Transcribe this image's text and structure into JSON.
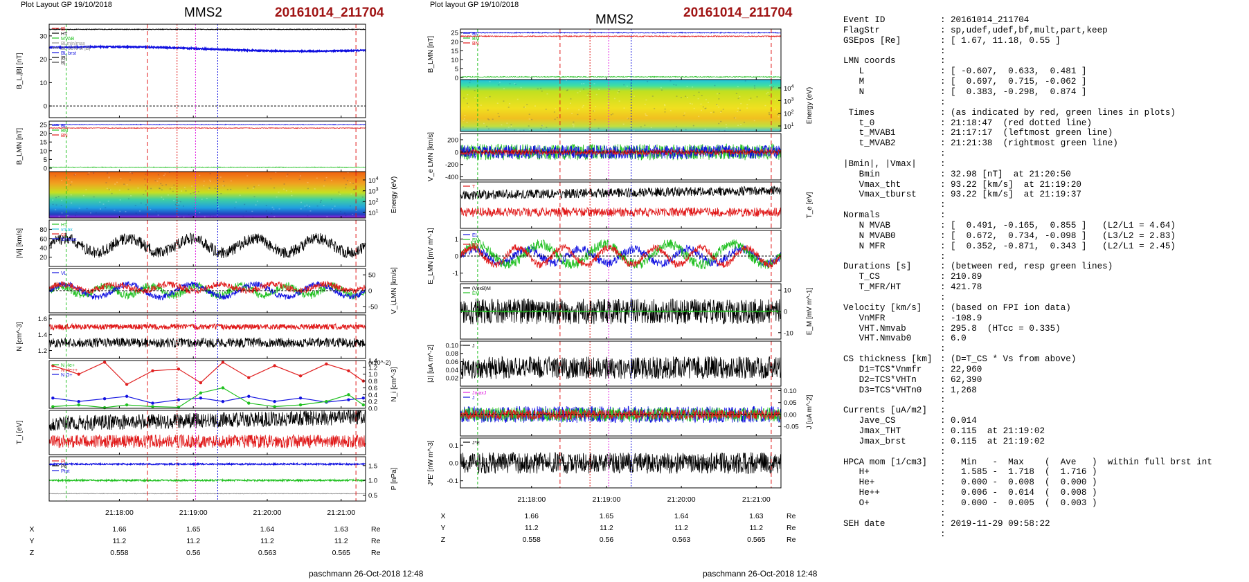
{
  "left_panel": {
    "plot_layout": "Plot Layout GP 19/10/2018",
    "spacecraft": "MMS2",
    "event": "20161014_211704",
    "footer": "paschmann 26-Oct-2018 12:48"
  },
  "middle_panel": {
    "plot_layout": "Plot layout GP 19/10/2018",
    "spacecraft": "MMS2",
    "event": "20161014_211704",
    "footer": "paschmann 26-Oct-2018 12:48"
  },
  "time_axis": {
    "ticks": [
      "21:18:00",
      "21:19:00",
      "21:20:00",
      "21:21:00"
    ],
    "tick_minutes": [
      18,
      19,
      20,
      21
    ],
    "range_minutes": [
      17.05,
      21.33
    ],
    "markers": {
      "mvab1": 17.28,
      "tcs_start": 18.38,
      "t0": 18.78,
      "tht": 19.03,
      "tburst": 19.33,
      "tcs_end": 21.2,
      "mvab2": 21.65
    }
  },
  "ephemeris": {
    "rows": [
      {
        "label": "X",
        "values": [
          "1.66",
          "1.65",
          "1.64",
          "1.63"
        ],
        "unit": "Re"
      },
      {
        "label": "Y",
        "values": [
          "11.2",
          "11.2",
          "11.2",
          "11.2"
        ],
        "unit": "Re"
      },
      {
        "label": "Z",
        "values": [
          "0.558",
          "0.56",
          "0.563",
          "0.565"
        ],
        "unit": "Re"
      }
    ]
  },
  "chart_data": [
    {
      "type": "line",
      "panel": "left-1",
      "ylabel": "B_L,|B| [nT]",
      "ylim": [
        -5,
        35
      ],
      "yticks": [
        "30",
        "20",
        "10",
        "0"
      ],
      "legend": [
        "Bl",
        "HT",
        "MVAB",
        "BLmin/max",
        "BL 50% of |B|",
        "BL brst",
        "|B|",
        "B|"
      ],
      "series": [
        {
          "name": "|B|",
          "approx_value": 33
        },
        {
          "name": "B_L",
          "start": 25.5,
          "end": 24.0
        }
      ]
    },
    {
      "type": "line",
      "panel": "left-2",
      "ylabel": "B_LMN [nT]",
      "ylim": [
        -2,
        27
      ],
      "yticks": [
        "25",
        "20",
        "15",
        "10",
        "5",
        "0"
      ],
      "legend": [
        "BL",
        "BM",
        "BN"
      ],
      "series": [
        {
          "name": "BL",
          "approx_value": 25
        },
        {
          "name": "BM",
          "approx_value": 23
        },
        {
          "name": "BN",
          "approx_value": 0.5
        }
      ]
    },
    {
      "type": "heatmap",
      "panel": "left-3",
      "ylabel": "Energy (eV)",
      "yticks": [
        "10^4",
        "10^3",
        "10^2",
        "10^1"
      ]
    },
    {
      "type": "line",
      "panel": "left-4",
      "ylabel": "|Vi| [km/s]",
      "ylim": [
        0,
        100
      ],
      "yticks": [
        "80",
        "60",
        "40",
        "20"
      ],
      "legend": [
        "HT",
        "vmax",
        "cs",
        "tbvmax"
      ],
      "series": [
        {
          "name": "|Vi|",
          "mean": 50,
          "amplitude": 25
        }
      ]
    },
    {
      "type": "line",
      "panel": "left-5",
      "ylabel": "V_i,LMN [km/s]",
      "ylim": [
        -70,
        70
      ],
      "yticks": [
        "50",
        "0",
        "-50"
      ],
      "legend": [
        "VL"
      ]
    },
    {
      "type": "line",
      "panel": "left-6",
      "ylabel": "N [cm^-3]",
      "ylim": [
        1.1,
        1.65
      ],
      "yticks": [
        "1.6",
        "1.4",
        "1.2"
      ],
      "series": [
        {
          "name": "N red",
          "mean": 1.5
        },
        {
          "name": "N black",
          "mean": 1.3
        }
      ]
    },
    {
      "type": "line",
      "panel": "left-7",
      "ylabel": "N_i [cm^-3]",
      "yscale_label": "(x10^-2)",
      "ylim": [
        0,
        1.4
      ],
      "yticks": [
        "1.4",
        "1.2",
        "1.0",
        "0.8",
        "0.6",
        "0.4",
        "0.2",
        "0.0"
      ],
      "legend": [
        "N He+",
        "N He++",
        "N O+"
      ],
      "series": [
        {
          "name": "N He++",
          "color": "#e02020",
          "x": [
            17.1,
            17.45,
            17.8,
            18.1,
            18.45,
            18.8,
            19.1,
            19.4,
            19.75,
            20.1,
            20.45,
            20.8,
            21.1,
            21.3
          ],
          "values": [
            1.25,
            1.0,
            1.35,
            0.7,
            1.1,
            1.15,
            0.75,
            1.35,
            0.9,
            1.25,
            0.95,
            1.3,
            1.1,
            0.8
          ]
        },
        {
          "name": "N O+",
          "color": "#1010e0",
          "x": [
            17.1,
            17.45,
            17.8,
            18.1,
            18.45,
            18.8,
            19.1,
            19.4,
            19.75,
            20.1,
            20.45,
            20.8,
            21.1,
            21.3
          ],
          "values": [
            0.3,
            0.2,
            0.28,
            0.35,
            0.15,
            0.25,
            0.3,
            0.2,
            0.35,
            0.2,
            0.3,
            0.18,
            0.25,
            0.3
          ]
        },
        {
          "name": "N He+",
          "color": "#20c020",
          "x": [
            17.1,
            17.45,
            17.8,
            18.1,
            18.45,
            18.8,
            19.1,
            19.4,
            19.75,
            20.1,
            20.45,
            20.8,
            21.1,
            21.3
          ],
          "values": [
            0.05,
            0.1,
            0.02,
            0.1,
            0.05,
            0.03,
            0.45,
            0.6,
            0.15,
            0.05,
            0.1,
            0.2,
            0.4,
            0.1
          ]
        }
      ]
    },
    {
      "type": "line",
      "panel": "left-8",
      "ylabel": "T_i [eV]",
      "series": [
        {
          "name": "T black",
          "mean": 0.65
        },
        {
          "name": "T red",
          "mean": 0.3
        }
      ]
    },
    {
      "type": "line",
      "panel": "left-9",
      "ylabel": "P [nPa]",
      "ylim": [
        0.3,
        1.8
      ],
      "yticks": [
        "1.5",
        "1.0",
        "0.5"
      ],
      "legend": [
        "Pi",
        "Pe",
        "Ptot"
      ],
      "series": [
        {
          "name": "P blue",
          "approx_value": 1.55
        },
        {
          "name": "P green",
          "approx_value": 1.0
        },
        {
          "name": "P gray",
          "approx_value": 0.55
        }
      ]
    },
    {
      "type": "line",
      "panel": "mid-1",
      "ylabel": "B_LMN [nT]",
      "ylim": [
        -1,
        27
      ],
      "yticks": [
        "25",
        "20",
        "15",
        "10",
        "5",
        "0"
      ],
      "legend": [
        "BL",
        "BM",
        "BN"
      ]
    },
    {
      "type": "heatmap",
      "panel": "mid-2",
      "ylabel": "Energy (eV)",
      "yticks": [
        "10^4",
        "10^3",
        "10^2",
        "10^1"
      ]
    },
    {
      "type": "line",
      "panel": "mid-3",
      "ylabel": "V_e LMN [km/s]",
      "ylim": [
        -450,
        300
      ],
      "yticks": [
        "200",
        "0",
        "-200",
        "-400"
      ]
    },
    {
      "type": "line",
      "panel": "mid-4",
      "ylabel": "T_e [eV]",
      "legend": [
        "T"
      ]
    },
    {
      "type": "line",
      "panel": "mid-5",
      "ylabel": "E_LMN [mV m^-1]",
      "ylim": [
        -1.5,
        1.5
      ],
      "yticks": [
        "1",
        "0",
        "-1"
      ],
      "legend": [
        "EL",
        "EM",
        "EN"
      ]
    },
    {
      "type": "line",
      "panel": "mid-6",
      "ylabel": "E_M [mV m^-1]",
      "ylim": [
        -13,
        13
      ],
      "yticks": [
        "10",
        "0",
        "-10"
      ],
      "legend": [
        "(VexB)M",
        "EM"
      ]
    },
    {
      "type": "line",
      "panel": "mid-7",
      "ylabel": "|J| [uA m^-2]",
      "ylim": [
        0,
        0.11
      ],
      "yticks": [
        "0.10",
        "0.08",
        "0.06",
        "0.04",
        "0.02"
      ],
      "legend": [
        "J"
      ]
    },
    {
      "type": "line",
      "panel": "mid-8",
      "ylabel": "J [uA m^-2]",
      "ylim": [
        -0.09,
        0.11
      ],
      "yticks": [
        "0.10",
        "0.05",
        "0.00",
        "-0.05"
      ],
      "legend": [
        "JmaxJ",
        "J"
      ]
    },
    {
      "type": "line",
      "panel": "mid-9",
      "ylabel": "J*E' [nW m^-3]",
      "ylim": [
        -0.14,
        0.14
      ],
      "yticks": [
        "0.1",
        "0.0",
        "-0.1"
      ],
      "legend": [
        "J*E"
      ]
    }
  ],
  "info": {
    "rows": [
      {
        "k": "Event ID",
        "v": "20161014_211704"
      },
      {
        "k": "FlagStr",
        "v": "sp,udef,udef,bf,mult,part,keep"
      },
      {
        "k": "GSEpos [Re]",
        "v": "[ 1.67, 11.18, 0.55 ]"
      },
      {
        "k": "",
        "v": ""
      },
      {
        "k": "LMN coords",
        "v": ""
      },
      {
        "k": "   L",
        "v": "[ -0.607,  0.633,  0.481 ]"
      },
      {
        "k": "   M",
        "v": "[  0.697,  0.715, -0.062 ]"
      },
      {
        "k": "   N",
        "v": "[  0.383, -0.298,  0.874 ]"
      },
      {
        "k": "",
        "v": ""
      },
      {
        "k": " Times",
        "v": "(as indicated by red, green lines in plots)"
      },
      {
        "k": "   t_0",
        "v": "21:18:47  (red dotted line)"
      },
      {
        "k": "   t_MVAB1",
        "v": "21:17:17  (leftmost green line)"
      },
      {
        "k": "   t_MVAB2",
        "v": "21:21:38  (rightmost green line)"
      },
      {
        "k": "",
        "v": ""
      },
      {
        "k": "|Bmin|, |Vmax|",
        "v": ""
      },
      {
        "k": "   Bmin",
        "v": "32.98 [nT]  at 21:20:50"
      },
      {
        "k": "   Vmax_tht",
        "v": "93.22 [km/s]  at 21:19:20"
      },
      {
        "k": "   Vmax_tburst",
        "v": "93.22 [km/s]  at 21:19:37"
      },
      {
        "k": "",
        "v": ""
      },
      {
        "k": "Normals",
        "v": ""
      },
      {
        "k": "   N MVAB",
        "v": "[  0.491, -0.165,  0.855 ]   (L2/L1 = 4.64)"
      },
      {
        "k": "   N MVAB0",
        "v": "[  0.672,  0.734, -0.098 ]   (L3/L2 = 2.83)"
      },
      {
        "k": "   N MFR",
        "v": "[  0.352, -0.871,  0.343 ]   (L2/L1 = 2.45)"
      },
      {
        "k": "",
        "v": ""
      },
      {
        "k": "Durations [s]",
        "v": "(between red, resp green lines)"
      },
      {
        "k": "   T_CS",
        "v": "210.89"
      },
      {
        "k": "   T_MFR/HT",
        "v": "421.78"
      },
      {
        "k": "",
        "v": ""
      },
      {
        "k": "Velocity [km/s]",
        "v": "(based on FPI ion data)"
      },
      {
        "k": "   VnMFR",
        "v": "-108.9"
      },
      {
        "k": "   VHT.Nmvab",
        "v": "295.8  (HTcc = 0.335)"
      },
      {
        "k": "   VHT.Nmvab0",
        "v": "6.0"
      },
      {
        "k": "",
        "v": ""
      },
      {
        "k": "CS thickness [km]",
        "v": "(D=T_CS * Vs from above)"
      },
      {
        "k": "   D1=TCS*Vnmfr",
        "v": "22,960"
      },
      {
        "k": "   D2=TCS*VHTn",
        "v": "62,390"
      },
      {
        "k": "   D3=TCS*VHTn0",
        "v": "1,268"
      },
      {
        "k": "",
        "v": ""
      },
      {
        "k": "Currents [uA/m2]",
        "v": ""
      },
      {
        "k": "   Jave_CS",
        "v": "0.014"
      },
      {
        "k": "   Jmax_THT",
        "v": "0.115  at 21:19:02"
      },
      {
        "k": "   Jmax_brst",
        "v": "0.115  at 21:19:02"
      },
      {
        "k": "",
        "v": ""
      },
      {
        "k": "HPCA mom [1/cm3]",
        "v": "  Min   -  Max    (  Ave   )  within full brst int"
      },
      {
        "k": "   H+",
        "v": "  1.585 -  1.718  (  1.716 )"
      },
      {
        "k": "   He+",
        "v": "  0.000 -  0.008  (  0.000 )"
      },
      {
        "k": "   He++",
        "v": "  0.006 -  0.014  (  0.008 )"
      },
      {
        "k": "   O+",
        "v": "  0.000 -  0.005  (  0.003 )"
      },
      {
        "k": "",
        "v": ""
      },
      {
        "k": "SEH date",
        "v": "2019-11-29 09:58:22"
      },
      {
        "k": "",
        "v": ""
      }
    ]
  },
  "colors": {
    "red": "#e01818",
    "green": "#20c020",
    "blue": "#1010e0",
    "black": "#000000",
    "magenta": "#e020e0",
    "title_red": "#a01414"
  }
}
